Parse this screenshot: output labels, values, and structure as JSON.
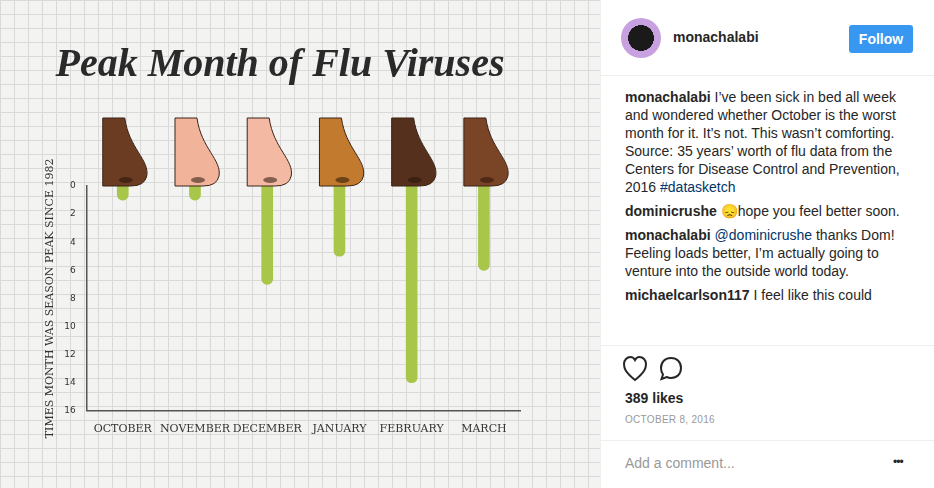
{
  "chart_data": {
    "type": "bar",
    "title": "Peak Month of Flu Viruses",
    "y_label": "TIMES MONTH WAS SEASON PEAK SINCE 1982",
    "categories": [
      "OCTOBER",
      "NOVEMBER",
      "DECEMBER",
      "JANUARY",
      "FEBRUARY",
      "MARCH"
    ],
    "values": [
      1,
      1,
      7,
      5,
      14,
      6
    ],
    "color": "#a8c64a",
    "ylim": [
      0,
      16
    ],
    "yticks": [
      0,
      2,
      4,
      6,
      8,
      10,
      12,
      14,
      16
    ],
    "grid": false
  },
  "post": {
    "username": "monachalabi",
    "follow": "Follow",
    "comments": [
      {
        "user": "monachalabi",
        "parts": [
          {
            "text": "I’ve been sick in bed all week and wondered whether October is the worst month for it. It’s not. This wasn’t comforting."
          },
          {
            "break": true
          },
          {
            "text": "Source: 35 years’ worth of flu data from the Centers for Disease Control and Prevention, 2016 "
          },
          {
            "link": "#datasketch"
          }
        ]
      },
      {
        "user": "dominicrushe",
        "parts": [
          {
            "text": "😞hope you feel better soon."
          }
        ]
      },
      {
        "user": "monachalabi",
        "parts": [
          {
            "link": "@dominicrushe"
          },
          {
            "text": " thanks Dom! Feeling loads better, I’m actually going to venture into the outside world today."
          }
        ]
      },
      {
        "user": "michaelcarlson117",
        "parts": [
          {
            "text": "I feel like this could"
          }
        ]
      }
    ],
    "likes": "389 likes",
    "date": "OCTOBER 8, 2016",
    "add_comment": "Add a comment...",
    "more": "•••"
  }
}
